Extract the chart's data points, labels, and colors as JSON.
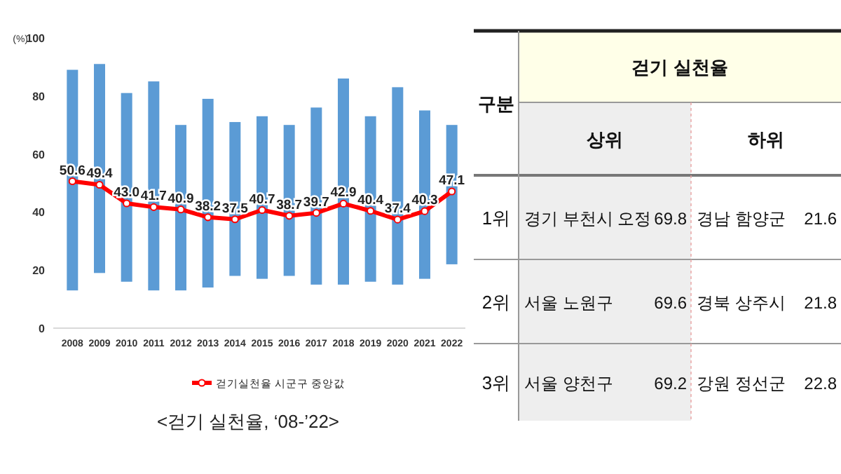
{
  "chart_data": [
    {
      "type": "bar",
      "ylabel": "(%)",
      "ylim": [
        0,
        100
      ],
      "yticks": [
        0,
        20,
        40,
        60,
        80,
        100
      ],
      "legend": "bottom",
      "categories": [
        "2008",
        "2009",
        "2010",
        "2011",
        "2012",
        "2013",
        "2014",
        "2015",
        "2016",
        "2017",
        "2018",
        "2019",
        "2020",
        "2021",
        "2022"
      ],
      "series": [
        {
          "type": "bar",
          "color": "#5b9bd5",
          "base": [
            13,
            19,
            16,
            13,
            13,
            14,
            18,
            17,
            18,
            15,
            15,
            16,
            15,
            17,
            22
          ],
          "values": [
            76,
            72,
            65,
            72,
            57,
            65,
            53,
            56,
            52,
            61,
            71,
            57,
            68,
            58,
            48
          ]
        },
        {
          "type": "line",
          "name": "걷기실천율 시군구 중앙값",
          "color": "#ff0000",
          "marker": "circle",
          "values": [
            50.6,
            49.4,
            43.0,
            41.7,
            40.9,
            38.2,
            37.5,
            40.7,
            38.7,
            39.7,
            42.9,
            40.4,
            37.4,
            40.3,
            47.1
          ],
          "value_labels": [
            "50.6",
            "49.4",
            "43.0",
            "41.7",
            "40.9",
            "38.2",
            "37.5",
            "40.7",
            "38.7",
            "39.7",
            "42.9",
            "40.4",
            "37.4",
            "40.3",
            "47.1"
          ]
        }
      ],
      "annotations": [
        "<걷기 실천율, ‘08-’22>"
      ]
    },
    {
      "type": "other",
      "annotations": [
        "구분",
        "걷기 실천율",
        "상위",
        "하위",
        "1위",
        "경기 부천시 오정",
        "69.8",
        "경남 함양군",
        "21.6",
        "2위",
        "서울 노원구",
        "69.6",
        "경북 상주시",
        "21.8",
        "3위",
        "서울 양천구",
        "69.2",
        "강원 정선군",
        "22.8"
      ]
    }
  ]
}
